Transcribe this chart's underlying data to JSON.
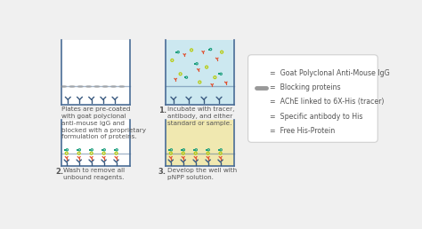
{
  "bg_color": "#f0f0f0",
  "well_border_color": "#4a6d96",
  "well_bg_panel0": "#ffffff",
  "well_bg_panel1": "#cce8f0",
  "well_bg_panel2": "#ffffff",
  "well_bg_panel3": "#f0e8b0",
  "antibody_color": "#3a5a80",
  "tracer_square_color": "#1a9e7c",
  "tracer_circle_color": "#1a9e7c",
  "specific_ab_color": "#e05030",
  "free_protein_color": "#b8cc10",
  "blocking_color": "#999999",
  "legend_texts": [
    "Goat Polyclonal Anti-Mouse IgG",
    "Blocking proteins",
    "AChE linked to 6X-His (tracer)",
    "Specific antibody to His",
    "Free His-Protein"
  ],
  "panel0_text": "Plates are pre-coated\nwith goat polyclonal\nanti-mouse IgG and\nblocked with a proprietary\nformulation of proteins.",
  "panel1_label": "1.",
  "panel1_text": "Incubate with tracer,\nantibody, and either\nstandard or sample.",
  "panel2_label": "2.",
  "panel2_text": "Wash to remove all\nunbound reagents.",
  "panel3_label": "3.",
  "panel3_text": "Develop the well with\npNPP solution.",
  "text_color": "#555555",
  "font_size": 5.2,
  "label_font_size": 6.0
}
